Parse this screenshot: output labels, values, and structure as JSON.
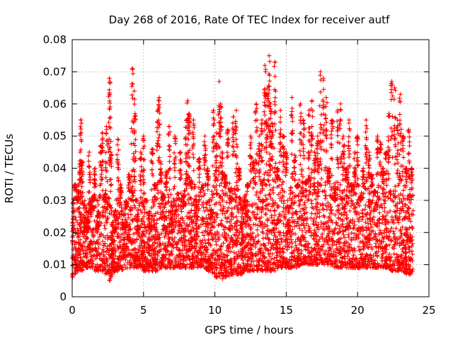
{
  "chart_data": {
    "type": "scatter",
    "title": "Day 268 of 2016, Rate Of TEC Index for receiver autf",
    "xlabel": "GPS time / hours",
    "ylabel": "ROTI / TECUs",
    "xlim": [
      0,
      25
    ],
    "ylim": [
      0,
      0.08
    ],
    "xticks": [
      "0",
      "5",
      "10",
      "15",
      "20",
      "25"
    ],
    "yticks": [
      "0",
      "0.01",
      "0.02",
      "0.03",
      "0.04",
      "0.05",
      "0.06",
      "0.07",
      "0.08"
    ],
    "grid": true,
    "marker": "+",
    "series_color": "#ff0000",
    "time_range_hours": [
      0,
      23.9
    ],
    "series": [
      {
        "name": "ROTI",
        "x": [
          0.05,
          0.2,
          0.4,
          0.55,
          0.6,
          0.7,
          0.85,
          1.0,
          1.2,
          1.3,
          1.5,
          1.6,
          1.8,
          2.0,
          2.1,
          2.3,
          2.4,
          2.6,
          2.65,
          2.7,
          2.8,
          3.0,
          3.2,
          3.4,
          3.6,
          3.8,
          4.0,
          4.2,
          4.35,
          4.4,
          4.5,
          4.6,
          4.8,
          5.0,
          5.2,
          5.4,
          5.6,
          5.8,
          6.0,
          6.1,
          6.2,
          6.4,
          6.6,
          6.8,
          7.0,
          7.2,
          7.4,
          7.6,
          7.8,
          8.0,
          8.1,
          8.2,
          8.3,
          8.5,
          8.7,
          8.9,
          9.1,
          9.3,
          9.5,
          9.7,
          9.9,
          10.1,
          10.3,
          10.4,
          10.5,
          10.7,
          10.9,
          11.1,
          11.3,
          11.5,
          11.7,
          11.9,
          12.1,
          12.3,
          12.5,
          12.7,
          12.9,
          13.1,
          13.3,
          13.5,
          13.6,
          13.7,
          13.8,
          13.9,
          14.0,
          14.2,
          14.4,
          14.6,
          14.8,
          15.0,
          15.2,
          15.4,
          15.6,
          15.8,
          16.0,
          16.2,
          16.4,
          16.6,
          16.8,
          17.0,
          17.2,
          17.4,
          17.6,
          17.8,
          18.0,
          18.2,
          18.4,
          18.6,
          18.8,
          19.0,
          19.2,
          19.4,
          19.6,
          19.8,
          20.0,
          20.2,
          20.4,
          20.6,
          20.8,
          21.0,
          21.2,
          21.4,
          21.6,
          21.8,
          22.0,
          22.2,
          22.4,
          22.6,
          22.8,
          23.0,
          23.2,
          23.4,
          23.6,
          23.8
        ],
        "y": [
          0.012,
          0.035,
          0.03,
          0.045,
          0.055,
          0.042,
          0.02,
          0.018,
          0.045,
          0.025,
          0.03,
          0.04,
          0.022,
          0.047,
          0.051,
          0.03,
          0.053,
          0.068,
          0.067,
          0.045,
          0.01,
          0.02,
          0.049,
          0.035,
          0.012,
          0.028,
          0.038,
          0.071,
          0.064,
          0.057,
          0.03,
          0.02,
          0.045,
          0.05,
          0.03,
          0.015,
          0.046,
          0.035,
          0.058,
          0.062,
          0.042,
          0.03,
          0.039,
          0.053,
          0.02,
          0.05,
          0.032,
          0.045,
          0.028,
          0.055,
          0.061,
          0.057,
          0.035,
          0.055,
          0.018,
          0.043,
          0.034,
          0.05,
          0.04,
          0.02,
          0.058,
          0.051,
          0.067,
          0.06,
          0.045,
          0.038,
          0.052,
          0.03,
          0.056,
          0.058,
          0.04,
          0.015,
          0.028,
          0.035,
          0.05,
          0.042,
          0.06,
          0.05,
          0.055,
          0.072,
          0.063,
          0.065,
          0.075,
          0.06,
          0.054,
          0.073,
          0.04,
          0.058,
          0.05,
          0.045,
          0.02,
          0.062,
          0.044,
          0.035,
          0.06,
          0.055,
          0.035,
          0.058,
          0.061,
          0.045,
          0.05,
          0.07,
          0.068,
          0.062,
          0.04,
          0.055,
          0.03,
          0.058,
          0.06,
          0.05,
          0.04,
          0.055,
          0.035,
          0.045,
          0.05,
          0.03,
          0.04,
          0.055,
          0.045,
          0.038,
          0.033,
          0.05,
          0.048,
          0.04,
          0.045,
          0.057,
          0.067,
          0.065,
          0.055,
          0.063,
          0.05,
          0.04,
          0.052,
          0.04
        ],
        "band_low": [
          0.006,
          0.007,
          0.008,
          0.008,
          0.008,
          0.008,
          0.009,
          0.009,
          0.009,
          0.009,
          0.009,
          0.008,
          0.008,
          0.008,
          0.008,
          0.007,
          0.007,
          0.005,
          0.005,
          0.006,
          0.007,
          0.008,
          0.008,
          0.008,
          0.008,
          0.009,
          0.009,
          0.009,
          0.009,
          0.009,
          0.009,
          0.009,
          0.009,
          0.008,
          0.008,
          0.008,
          0.008,
          0.008,
          0.008,
          0.008,
          0.009,
          0.009,
          0.009,
          0.009,
          0.009,
          0.009,
          0.009,
          0.009,
          0.009,
          0.009,
          0.009,
          0.009,
          0.009,
          0.009,
          0.009,
          0.009,
          0.009,
          0.009,
          0.008,
          0.008,
          0.007,
          0.006,
          0.006,
          0.005,
          0.005,
          0.006,
          0.006,
          0.006,
          0.007,
          0.007,
          0.007,
          0.007,
          0.008,
          0.008,
          0.008,
          0.008,
          0.008,
          0.008,
          0.008,
          0.008,
          0.008,
          0.008,
          0.008,
          0.008,
          0.008,
          0.008,
          0.009,
          0.009,
          0.009,
          0.009,
          0.009,
          0.009,
          0.009,
          0.009,
          0.01,
          0.01,
          0.01,
          0.01,
          0.01,
          0.01,
          0.01,
          0.01,
          0.01,
          0.01,
          0.01,
          0.01,
          0.009,
          0.009,
          0.009,
          0.009,
          0.009,
          0.009,
          0.009,
          0.009,
          0.009,
          0.009,
          0.009,
          0.009,
          0.009,
          0.009,
          0.009,
          0.009,
          0.009,
          0.009,
          0.009,
          0.009,
          0.008,
          0.008,
          0.008,
          0.008,
          0.008,
          0.007,
          0.007,
          0.007
        ],
        "band_high": [
          0.03,
          0.033,
          0.035,
          0.036,
          0.037,
          0.035,
          0.03,
          0.028,
          0.032,
          0.03,
          0.032,
          0.034,
          0.03,
          0.034,
          0.036,
          0.032,
          0.034,
          0.036,
          0.036,
          0.032,
          0.024,
          0.028,
          0.034,
          0.03,
          0.026,
          0.03,
          0.032,
          0.036,
          0.036,
          0.034,
          0.03,
          0.028,
          0.032,
          0.033,
          0.03,
          0.026,
          0.032,
          0.03,
          0.036,
          0.038,
          0.034,
          0.032,
          0.034,
          0.036,
          0.03,
          0.036,
          0.032,
          0.034,
          0.032,
          0.038,
          0.04,
          0.04,
          0.036,
          0.038,
          0.032,
          0.036,
          0.034,
          0.038,
          0.036,
          0.032,
          0.04,
          0.038,
          0.042,
          0.04,
          0.036,
          0.034,
          0.038,
          0.034,
          0.04,
          0.04,
          0.036,
          0.03,
          0.032,
          0.034,
          0.038,
          0.036,
          0.04,
          0.04,
          0.042,
          0.044,
          0.042,
          0.044,
          0.046,
          0.042,
          0.04,
          0.044,
          0.036,
          0.04,
          0.038,
          0.036,
          0.03,
          0.04,
          0.036,
          0.034,
          0.04,
          0.04,
          0.036,
          0.04,
          0.042,
          0.038,
          0.04,
          0.044,
          0.044,
          0.042,
          0.036,
          0.04,
          0.034,
          0.04,
          0.04,
          0.038,
          0.036,
          0.04,
          0.034,
          0.036,
          0.038,
          0.032,
          0.034,
          0.038,
          0.036,
          0.034,
          0.032,
          0.036,
          0.036,
          0.034,
          0.036,
          0.04,
          0.042,
          0.042,
          0.038,
          0.04,
          0.036,
          0.034,
          0.036,
          0.032
        ]
      }
    ]
  }
}
